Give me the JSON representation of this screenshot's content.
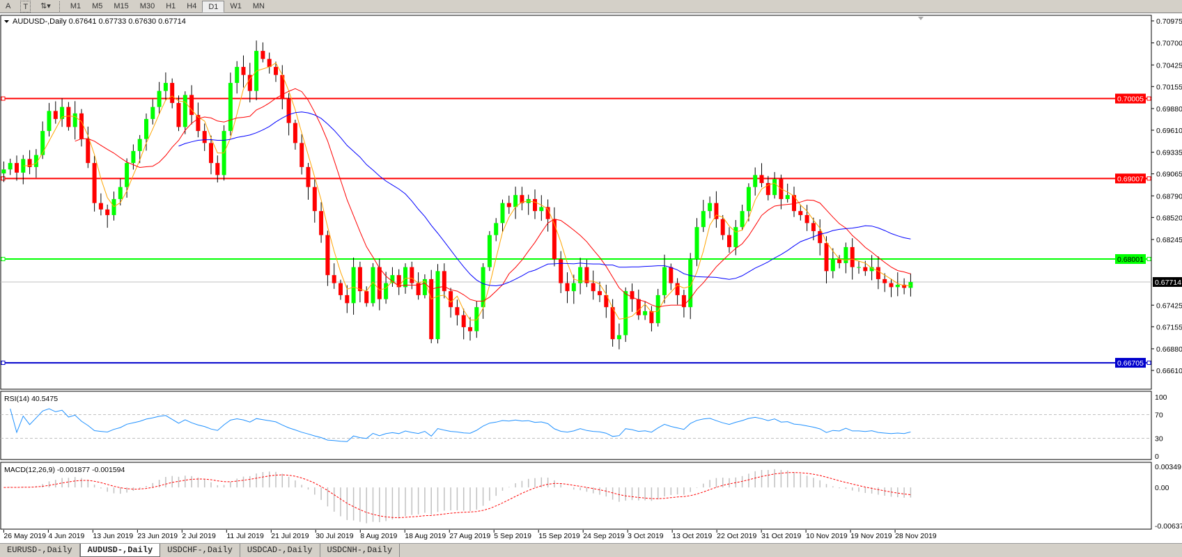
{
  "toolbar": {
    "text_tool": "A",
    "label_tool": "T",
    "timeframes": [
      "M1",
      "M5",
      "M15",
      "M30",
      "H1",
      "H4",
      "D1",
      "W1",
      "MN"
    ],
    "active_timeframe": "D1"
  },
  "chart_header": {
    "symbol": "AUDUSD-,Daily",
    "open": "0.67641",
    "high": "0.67733",
    "low": "0.67630",
    "close": "0.67714"
  },
  "price_axis": {
    "ticks": [
      "0.70975",
      "0.70700",
      "0.70425",
      "0.70155",
      "0.69880",
      "0.69610",
      "0.69335",
      "0.69065",
      "0.68790",
      "0.68520",
      "0.68245",
      "0.67425",
      "0.67155",
      "0.66880",
      "0.66610"
    ],
    "range": [
      0.6661,
      0.70975
    ]
  },
  "hlines": [
    {
      "price": 0.70005,
      "label": "0.70005",
      "color": "#ff0000"
    },
    {
      "price": 0.69007,
      "label": "0.69007",
      "color": "#ff0000"
    },
    {
      "price": 0.68001,
      "label": "0.68001",
      "color": "#00ff00"
    },
    {
      "price": 0.66705,
      "label": "0.66705",
      "color": "#0000cc"
    }
  ],
  "current_price": {
    "price": 0.67714,
    "label": "0.67714"
  },
  "rsi": {
    "title": "RSI(14) 40.5475",
    "levels": [
      "100",
      "70",
      "30",
      "0"
    ]
  },
  "macd": {
    "title": "MACD(12,26,9) -0.001877 -0.001594",
    "ticks": [
      "0.00349",
      "0.00",
      "-0.00637"
    ],
    "range": [
      -0.00637,
      0.00349
    ]
  },
  "chart_data": {
    "type": "candlestick",
    "bull_color": "#00ff00",
    "bear_color": "#ff0000",
    "ma_colors": [
      "#ffa500",
      "#ff0000",
      "#0000ff"
    ],
    "closes": [
      0.6912,
      0.692,
      0.6908,
      0.6925,
      0.6915,
      0.693,
      0.696,
      0.6985,
      0.6975,
      0.699,
      0.6965,
      0.6982,
      0.695,
      0.692,
      0.687,
      0.6862,
      0.6855,
      0.6875,
      0.689,
      0.692,
      0.6935,
      0.695,
      0.6975,
      0.699,
      0.701,
      0.702,
      0.6995,
      0.6965,
      0.7005,
      0.698,
      0.696,
      0.6945,
      0.692,
      0.6905,
      0.696,
      0.702,
      0.704,
      0.703,
      0.701,
      0.706,
      0.705,
      0.704,
      0.703,
      0.7,
      0.697,
      0.6945,
      0.6915,
      0.689,
      0.686,
      0.683,
      0.678,
      0.677,
      0.6755,
      0.6745,
      0.679,
      0.676,
      0.6745,
      0.679,
      0.675,
      0.677,
      0.678,
      0.6765,
      0.679,
      0.677,
      0.6755,
      0.6775,
      0.67,
      0.6785,
      0.676,
      0.674,
      0.673,
      0.6715,
      0.671,
      0.674,
      0.679,
      0.683,
      0.6845,
      0.687,
      0.6865,
      0.688,
      0.687,
      0.6875,
      0.686,
      0.6865,
      0.685,
      0.68,
      0.677,
      0.676,
      0.677,
      0.679,
      0.677,
      0.676,
      0.6755,
      0.674,
      0.67,
      0.6705,
      0.676,
      0.675,
      0.673,
      0.6735,
      0.672,
      0.6755,
      0.679,
      0.677,
      0.6755,
      0.674,
      0.68,
      0.684,
      0.686,
      0.687,
      0.685,
      0.683,
      0.6815,
      0.684,
      0.686,
      0.689,
      0.6905,
      0.6895,
      0.688,
      0.69,
      0.6875,
      0.688,
      0.686,
      0.6855,
      0.6845,
      0.6835,
      0.682,
      0.6785,
      0.68,
      0.6795,
      0.6815,
      0.679,
      0.679,
      0.6785,
      0.679,
      0.6775,
      0.677,
      0.6765,
      0.6768,
      0.67641,
      0.67714
    ],
    "date_labels": [
      "26 May 2019",
      "4 Jun 2019",
      "13 Jun 2019",
      "23 Jun 2019",
      "2 Jul 2019",
      "11 Jul 2019",
      "21 Jul 2019",
      "30 Jul 2019",
      "8 Aug 2019",
      "18 Aug 2019",
      "27 Aug 2019",
      "5 Sep 2019",
      "15 Sep 2019",
      "24 Sep 2019",
      "3 Oct 2019",
      "13 Oct 2019",
      "22 Oct 2019",
      "31 Oct 2019",
      "10 Nov 2019",
      "19 Nov 2019",
      "28 Nov 2019"
    ]
  },
  "tabs": [
    "EURUSD-,Daily",
    "AUDUSD-,Daily",
    "USDCHF-,Daily",
    "USDCAD-,Daily",
    "USDCNH-,Daily"
  ],
  "active_tab": "AUDUSD-,Daily"
}
